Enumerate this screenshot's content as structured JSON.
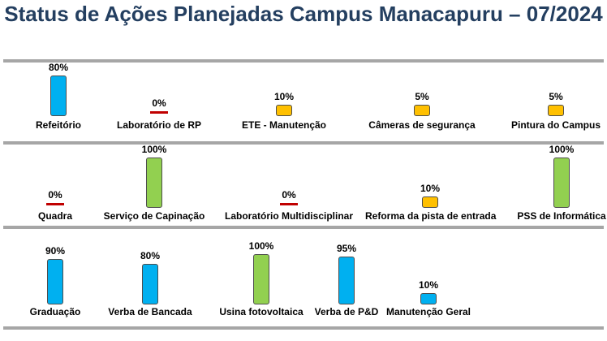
{
  "title": "Status de Ações Planejadas Campus Manacapuru – 07/2024",
  "colors": {
    "blue": "#00b0f0",
    "orange": "#ffc000",
    "green": "#92d050",
    "red": "#c00000",
    "divider": "#a6a6a6",
    "title": "#243f60"
  },
  "chart_data": {
    "type": "bar",
    "unit": "%",
    "rows": [
      {
        "items": [
          {
            "label": "Refeitório",
            "value": 80,
            "display": "80%",
            "color": "blue"
          },
          {
            "label": "Laboratório de RP",
            "value": 0,
            "display": "0%",
            "color": "red"
          },
          {
            "label": "ETE - Manutenção",
            "value": 10,
            "display": "10%",
            "color": "orange"
          },
          {
            "label": "Câmeras de segurança",
            "value": 5,
            "display": "5%",
            "color": "orange"
          },
          {
            "label": "Pintura do Campus",
            "value": 5,
            "display": "5%",
            "color": "orange"
          }
        ]
      },
      {
        "items": [
          {
            "label": "Quadra",
            "value": 0,
            "display": "0%",
            "color": "red"
          },
          {
            "label": "Serviço de Capinação",
            "value": 100,
            "display": "100%",
            "color": "green"
          },
          {
            "label": "Laboratório Multidisciplinar",
            "value": 0,
            "display": "0%",
            "color": "red"
          },
          {
            "label": "Reforma da pista de entrada",
            "value": 10,
            "display": "10%",
            "color": "orange"
          },
          {
            "label": "PSS de Informática",
            "value": 100,
            "display": "100%",
            "color": "green"
          }
        ]
      },
      {
        "items": [
          {
            "label": "Graduação",
            "value": 90,
            "display": "90%",
            "color": "blue"
          },
          {
            "label": "Verba de Bancada",
            "value": 80,
            "display": "80%",
            "color": "blue"
          },
          {
            "label": "Usina fotovoltaica",
            "value": 100,
            "display": "100%",
            "color": "green"
          },
          {
            "label": "Verba de P&D",
            "value": 95,
            "display": "95%",
            "color": "blue"
          },
          {
            "label": "Manutenção Geral",
            "value": 10,
            "display": "10%",
            "color": "blue"
          }
        ]
      }
    ]
  }
}
